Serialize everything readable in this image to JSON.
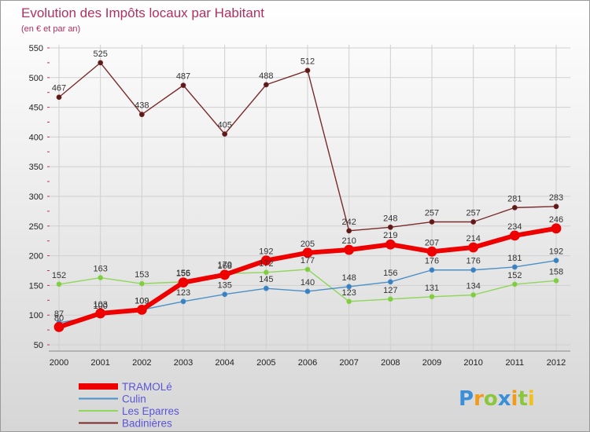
{
  "chart_data": {
    "type": "line",
    "title": "Evolution des Impôts locaux par Habitant",
    "subtitle": "(en € et par an)",
    "xlabel": "",
    "ylabel": "",
    "ylim": [
      50,
      550
    ],
    "y_ticks": [
      50,
      100,
      150,
      200,
      250,
      300,
      350,
      400,
      450,
      500,
      550
    ],
    "categories": [
      "2000",
      "2001",
      "2002",
      "2003",
      "2004",
      "2005",
      "2006",
      "2007",
      "2008",
      "2009",
      "2010",
      "2011",
      "2012"
    ],
    "grid": true,
    "legend_position": "bottom-left",
    "series": [
      {
        "name": "Badinières",
        "color": "#7a2a2a",
        "values": [
          467,
          525,
          438,
          487,
          405,
          488,
          512,
          242,
          248,
          257,
          257,
          281,
          283
        ]
      },
      {
        "name": "Les Eparres",
        "color": "#8fd65a",
        "values": [
          152,
          163,
          153,
          156,
          170,
          172,
          177,
          123,
          127,
          131,
          134,
          152,
          158
        ]
      },
      {
        "name": "Culin",
        "color": "#4a90c8",
        "values": [
          87,
          100,
          109,
          123,
          135,
          145,
          140,
          148,
          156,
          176,
          176,
          181,
          192
        ]
      },
      {
        "name": "TRAMOLé",
        "color": "#ee0000",
        "values": [
          80,
          103,
          109,
          155,
          168,
          192,
          205,
          210,
          219,
          207,
          214,
          234,
          246
        ]
      }
    ]
  },
  "brand": {
    "logo_text": "Proxiti"
  },
  "colors": {
    "title": "#b03060",
    "grid": "#cccccc",
    "axis_tick": "#c03060",
    "background_top": "#ffffff",
    "background_bottom": "#d8d8d8"
  }
}
